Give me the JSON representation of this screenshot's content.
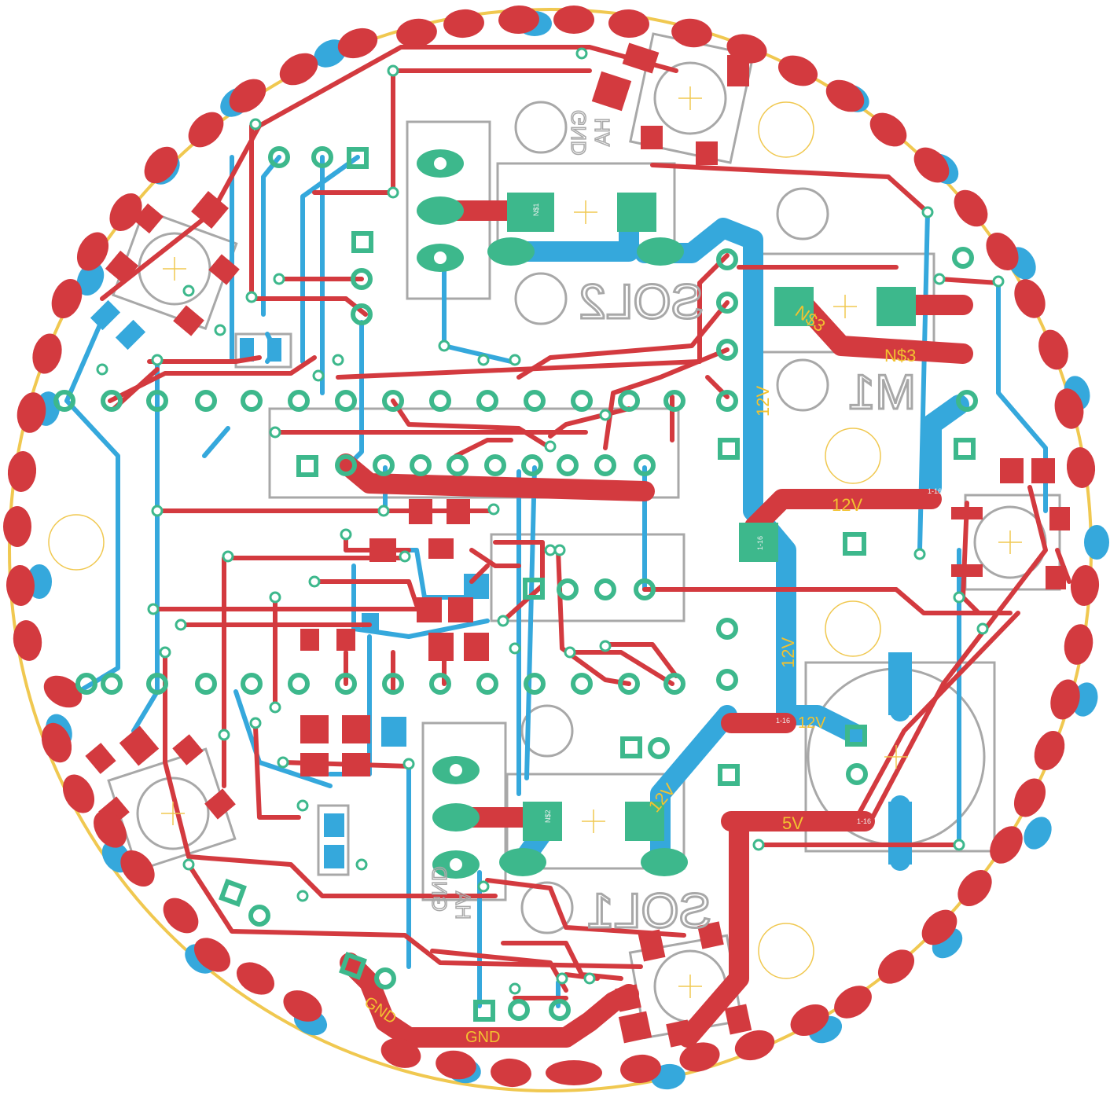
{
  "colors": {
    "background": "#ffffff",
    "outline": "#f0c850",
    "top_copper": "#d33a3f",
    "bottom_copper": "#35a8dc",
    "pad": "#3db88c",
    "silkscreen": "#a8a8a8",
    "net_label": "#f2c230"
  },
  "silkscreen_labels": {
    "sol2": "SOL2",
    "sol1": "SOL1",
    "m1": "M1",
    "gnd_top": "GND",
    "ha_top": "HA",
    "gnd_bottom": "GND",
    "ha_bottom": "HA"
  },
  "net_labels": {
    "n3_a": "N$3",
    "n3_b": "N$3",
    "v12_vertical_top": "12V",
    "v12_horizontal": "12V",
    "v12_vertical_mid": "12V",
    "v12_right": "12V",
    "v12_diagonal": "12V",
    "v5": "5V",
    "gnd_diagonal": "GND",
    "gnd_horizontal": "GND"
  },
  "pad_labels": {
    "p1_16_a": "1-16",
    "p1_16_b": "1-16",
    "p1_16_c": "1-16",
    "p1_16_d": "1-16",
    "sol1_pin": "N$2",
    "sol2_pin": "N$1"
  }
}
